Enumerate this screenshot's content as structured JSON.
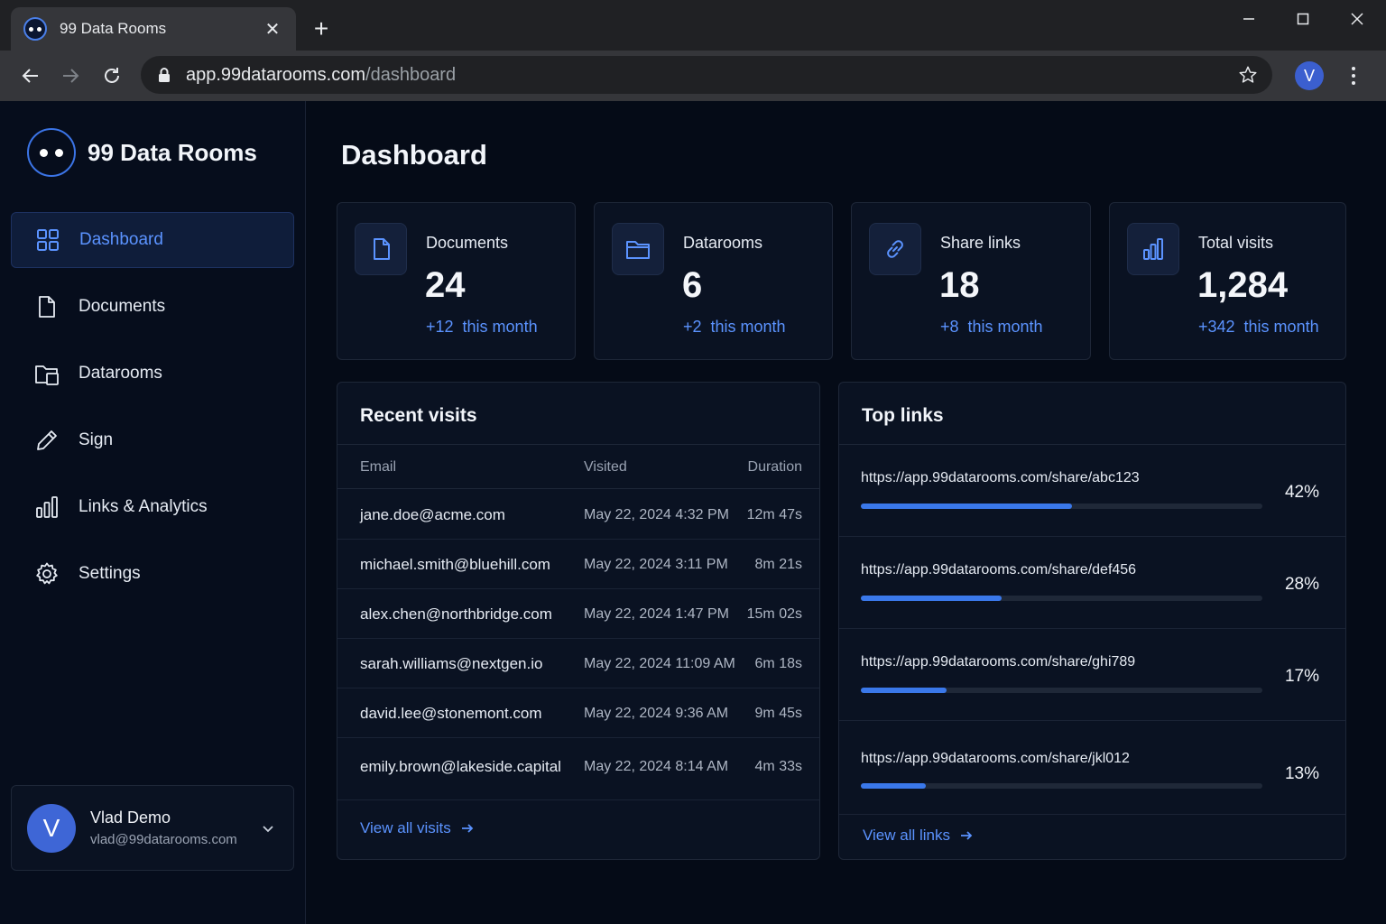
{
  "browser": {
    "tab_title": "99 Data Rooms",
    "url_host": "app.99datarooms.com",
    "url_path": "/dashboard",
    "profile_initial": "V"
  },
  "sidebar": {
    "brand": "99 Data Rooms",
    "items": [
      {
        "label": "Dashboard",
        "icon": "grid-icon",
        "active": true
      },
      {
        "label": "Documents",
        "icon": "document-icon",
        "active": false
      },
      {
        "label": "Datarooms",
        "icon": "folder-icon",
        "active": false
      },
      {
        "label": "Sign",
        "icon": "pen-icon",
        "active": false
      },
      {
        "label": "Links & Analytics",
        "icon": "bar-chart-icon",
        "active": false
      },
      {
        "label": "Settings",
        "icon": "gear-icon",
        "active": false
      }
    ],
    "user": {
      "initial": "V",
      "name": "Vlad Demo",
      "email": "vlad@99datarooms.com"
    }
  },
  "main": {
    "title": "Dashboard",
    "stats": [
      {
        "label": "Documents",
        "value": "24",
        "delta": "+12  this month",
        "icon": "document-icon"
      },
      {
        "label": "Datarooms",
        "value": "6",
        "delta": "+2  this month",
        "icon": "folder-icon"
      },
      {
        "label": "Share links",
        "value": "18",
        "delta": "+8  this month",
        "icon": "link-icon"
      },
      {
        "label": "Total visits",
        "value": "1,284",
        "delta": "+342  this month",
        "icon": "bar-chart-icon"
      }
    ],
    "recent_visits": {
      "title": "Recent visits",
      "columns": {
        "email": "Email",
        "visited": "Visited",
        "duration": "Duration"
      },
      "rows": [
        {
          "email": "jane.doe@acme.com",
          "visited": "May 22, 2024 4:32 PM",
          "duration": "12m 47s"
        },
        {
          "email": "michael.smith@bluehill.com",
          "visited": "May 22, 2024 3:11 PM",
          "duration": "8m 21s"
        },
        {
          "email": "alex.chen@northbridge.com",
          "visited": "May 22, 2024 1:47 PM",
          "duration": "15m 02s"
        },
        {
          "email": "sarah.williams@nextgen.io",
          "visited": "May 22, 2024 11:09 AM",
          "duration": "6m 18s"
        },
        {
          "email": "david.lee@stonemont.com",
          "visited": "May 22, 2024 9:36 AM",
          "duration": "9m 45s"
        },
        {
          "email": "emily.brown@lakeside.capital",
          "visited": "May 22, 2024 8:14 AM",
          "duration": "4m 33s"
        }
      ],
      "view_all": "View all visits"
    },
    "top_links": {
      "title": "Top links",
      "rows": [
        {
          "url": "https://app.99datarooms.com/share/abc123",
          "percent": 42,
          "label": "42%"
        },
        {
          "url": "https://app.99datarooms.com/share/def456",
          "percent": 28,
          "label": "28%"
        },
        {
          "url": "https://app.99datarooms.com/share/ghi789",
          "percent": 17,
          "label": "17%"
        },
        {
          "url": "https://app.99datarooms.com/share/jkl012",
          "percent": 13,
          "label": "13%"
        }
      ],
      "view_all": "View all links"
    }
  },
  "colors": {
    "accent": "#5b93ff",
    "bar": "#3a78ea",
    "background": "#050b17",
    "card": "#0a1222"
  }
}
